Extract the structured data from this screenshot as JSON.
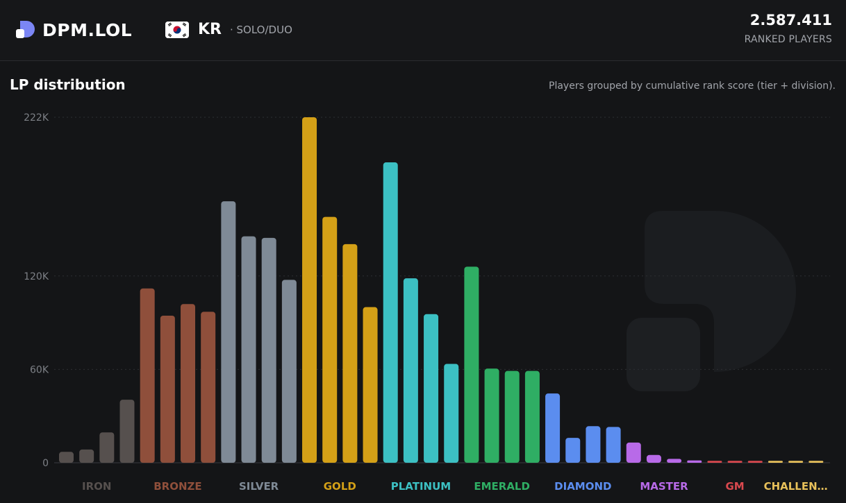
{
  "brand": {
    "name": "DPM.LOL"
  },
  "region": {
    "code": "KR",
    "queue": "· SOLO/DUO"
  },
  "players": {
    "count": "2.587.411",
    "label": "RANKED PLAYERS"
  },
  "chart_title": "LP distribution",
  "chart_subtitle": "Players grouped by cumulative rank score (tier + division).",
  "colors": {
    "background": "#141517",
    "iron": "#56504e",
    "bronze": "#8f4f3b",
    "silver": "#7f8a96",
    "gold": "#d4a017",
    "platinum": "#3cc0c3",
    "emerald": "#2fae64",
    "diamond": "#5b8def",
    "master": "#b86ae8",
    "gm": "#d9484e",
    "challenger": "#e7c05a"
  },
  "chart_data": {
    "type": "bar",
    "title": "LP distribution",
    "subtitle": "Players grouped by cumulative rank score (tier + division).",
    "ylim": [
      0,
      222000
    ],
    "yticks": [
      {
        "value": 0,
        "label": "0"
      },
      {
        "value": 60000,
        "label": "60K"
      },
      {
        "value": 120000,
        "label": "120K"
      },
      {
        "value": 222000,
        "label": "222K"
      }
    ],
    "grid": true,
    "tiers": [
      {
        "name": "IRON",
        "label": "IRON",
        "color": "#56504e",
        "values": [
          7000,
          8500,
          19500,
          40500
        ]
      },
      {
        "name": "BRONZE",
        "label": "BRONZE",
        "color": "#8f4f3b",
        "values": [
          112000,
          94500,
          102000,
          97000
        ]
      },
      {
        "name": "SILVER",
        "label": "SILVER",
        "color": "#7f8a96",
        "values": [
          168000,
          145500,
          144500,
          117500
        ]
      },
      {
        "name": "GOLD",
        "label": "GOLD",
        "color": "#d4a017",
        "values": [
          222000,
          158000,
          140500,
          100000
        ]
      },
      {
        "name": "PLATINUM",
        "label": "PLATINUM",
        "color": "#3cc0c3",
        "values": [
          193000,
          118500,
          95500,
          63500
        ]
      },
      {
        "name": "EMERALD",
        "label": "EMERALD",
        "color": "#2fae64",
        "values": [
          126000,
          60500,
          59000,
          59000
        ]
      },
      {
        "name": "DIAMOND",
        "label": "DIAMOND",
        "color": "#5b8def",
        "values": [
          44500,
          16000,
          23500,
          23000
        ]
      },
      {
        "name": "MASTER",
        "label": "MASTER",
        "color": "#b86ae8",
        "values": [
          13000,
          5000,
          2500,
          1500
        ]
      },
      {
        "name": "GM",
        "label": "GM",
        "color": "#d9484e",
        "values": [
          1200,
          1200,
          1200
        ]
      },
      {
        "name": "CHALLENGER",
        "label": "CHALLEN…",
        "color": "#e7c05a",
        "values": [
          1200,
          1200,
          1200
        ]
      }
    ]
  }
}
